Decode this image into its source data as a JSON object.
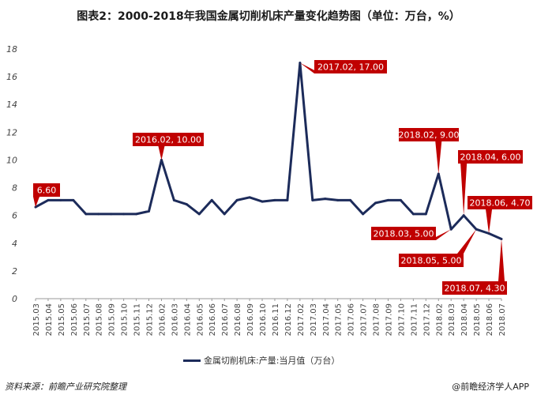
{
  "title": "图表2：2000-2018年我国金属切削机床产量变化趋势图（单位：万台，%）",
  "legend_label": "金属切削机床:产量:当月值（万台）",
  "source": "资料来源：前瞻产业研究院整理",
  "brand": "@前瞻经济学人APP",
  "colors": {
    "line": "#1c2b5a",
    "callout": "#c00000",
    "axis": "#999999"
  },
  "chart_data": {
    "type": "line",
    "title": "图表2：2000-2018年我国金属切削机床产量变化趋势图（单位：万台，%）",
    "xlabel": "",
    "ylabel": "",
    "ylim": [
      0,
      18
    ],
    "yticks": [
      0,
      2,
      4,
      6,
      8,
      10,
      12,
      14,
      16,
      18
    ],
    "grid": false,
    "legend_position": "bottom",
    "categories": [
      "2015.03",
      "2015.04",
      "2015.05",
      "2015.06",
      "2015.07",
      "2015.08",
      "2015.09",
      "2015.10",
      "2015.11",
      "2015.12",
      "2016.02",
      "2016.03",
      "2016.04",
      "2016.05",
      "2016.06",
      "2016.07",
      "2016.08",
      "2016.09",
      "2016.10",
      "2016.11",
      "2016.12",
      "2017.02",
      "2017.03",
      "2017.04",
      "2017.05",
      "2017.06",
      "2017.07",
      "2017.08",
      "2017.09",
      "2017.10",
      "2017.11",
      "2017.12",
      "2018.02",
      "2018.03",
      "2018.04",
      "2018.05",
      "2018.06",
      "2018.07"
    ],
    "series": [
      {
        "name": "金属切削机床:产量:当月值（万台）",
        "values": [
          6.6,
          7.1,
          7.1,
          7.1,
          6.1,
          6.1,
          6.1,
          6.1,
          6.1,
          6.3,
          10.0,
          7.1,
          6.8,
          6.1,
          7.1,
          6.1,
          7.1,
          7.3,
          7.0,
          7.1,
          7.1,
          17.0,
          7.1,
          7.2,
          7.1,
          7.1,
          6.1,
          6.9,
          7.1,
          7.1,
          6.1,
          6.1,
          9.0,
          5.0,
          6.0,
          5.0,
          4.7,
          4.3
        ]
      }
    ],
    "annotations": [
      {
        "index": 0,
        "text": "6.60"
      },
      {
        "index": 10,
        "text": "2016.02, 10.00"
      },
      {
        "index": 21,
        "text": "2017.02, 17.00"
      },
      {
        "index": 32,
        "text": "2018.02, 9.00"
      },
      {
        "index": 33,
        "text": "2018.03, 5.00"
      },
      {
        "index": 34,
        "text": "2018.04, 6.00"
      },
      {
        "index": 35,
        "text": "2018.05, 5.00"
      },
      {
        "index": 36,
        "text": "2018.06, 4.70"
      },
      {
        "index": 37,
        "text": "2018.07, 4.30"
      }
    ]
  }
}
